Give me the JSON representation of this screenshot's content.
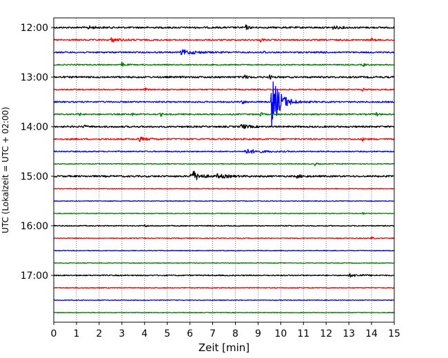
{
  "chart_data": {
    "type": "line",
    "title": "",
    "xlabel": "Zeit  [min]",
    "ylabel": "UTC (Lokalzeit = UTC + 02:00)",
    "xlim": [
      0,
      15
    ],
    "x_ticks": [
      0,
      1,
      2,
      3,
      4,
      5,
      6,
      7,
      8,
      9,
      10,
      11,
      12,
      13,
      14,
      15
    ],
    "x_tick_labels": [
      "0",
      "1",
      "2",
      "3",
      "4",
      "5",
      "6",
      "7",
      "8",
      "9",
      "10",
      "11",
      "12",
      "13",
      "14",
      "15"
    ],
    "grid": "vertical dotted at each minute",
    "trace_interval_min": 15,
    "trace_color_cycle": [
      "#000000",
      "#ff0000",
      "#0000ff",
      "#008000"
    ],
    "y_ticks": [
      {
        "label": "12:00",
        "trace_index": 0
      },
      {
        "label": "13:00",
        "trace_index": 4
      },
      {
        "label": "14:00",
        "trace_index": 8
      },
      {
        "label": "15:00",
        "trace_index": 12
      },
      {
        "label": "16:00",
        "trace_index": 16
      },
      {
        "label": "17:00",
        "trace_index": 20
      }
    ],
    "series": [
      {
        "start": "12:00",
        "color": "#000000",
        "noise": 1.2,
        "events": [
          {
            "x": 8.45,
            "amp": 3.5,
            "dur": 0.12
          },
          {
            "x": 1.5,
            "amp": 2,
            "dur": 0.3
          },
          {
            "x": 12.3,
            "amp": 2,
            "dur": 0.3
          }
        ]
      },
      {
        "start": "12:15",
        "color": "#ff0000",
        "noise": 1.0,
        "events": [
          {
            "x": 2.5,
            "amp": 3,
            "dur": 0.4
          },
          {
            "x": 9.1,
            "amp": 3,
            "dur": 0.1
          },
          {
            "x": 14.0,
            "amp": 2.5,
            "dur": 0.1
          }
        ]
      },
      {
        "start": "12:30",
        "color": "#0000ff",
        "noise": 1.0,
        "events": [
          {
            "x": 5.6,
            "amp": 3.5,
            "dur": 0.6
          },
          {
            "x": 9.2,
            "amp": 3,
            "dur": 0.1
          },
          {
            "x": 11.7,
            "amp": 2,
            "dur": 0.15
          }
        ]
      },
      {
        "start": "12:45",
        "color": "#008000",
        "noise": 0.8,
        "events": [
          {
            "x": 3.0,
            "amp": 4,
            "dur": 0.1
          },
          {
            "x": 13.6,
            "amp": 3,
            "dur": 0.1
          }
        ]
      },
      {
        "start": "13:00",
        "color": "#000000",
        "noise": 1.2,
        "events": [
          {
            "x": 8.35,
            "amp": 3.5,
            "dur": 0.15
          },
          {
            "x": 9.5,
            "amp": 3,
            "dur": 0.1
          }
        ]
      },
      {
        "start": "13:15",
        "color": "#ff0000",
        "noise": 0.8,
        "events": [
          {
            "x": 4.0,
            "amp": 3,
            "dur": 0.08
          },
          {
            "x": 13.6,
            "amp": 3,
            "dur": 0.08
          }
        ]
      },
      {
        "start": "13:30",
        "color": "#0000ff",
        "noise": 1.0,
        "events": [
          {
            "x": 9.6,
            "amp": 38,
            "dur": 0.35
          },
          {
            "x": 8.3,
            "amp": 3,
            "dur": 0.1
          }
        ]
      },
      {
        "start": "13:45",
        "color": "#008000",
        "noise": 1.0,
        "events": [
          {
            "x": 1.1,
            "amp": 2.5,
            "dur": 0.08
          },
          {
            "x": 3.4,
            "amp": 3,
            "dur": 0.08
          },
          {
            "x": 4.7,
            "amp": 3,
            "dur": 0.08
          },
          {
            "x": 9.1,
            "amp": 3,
            "dur": 0.08
          },
          {
            "x": 14.2,
            "amp": 3,
            "dur": 0.08
          }
        ]
      },
      {
        "start": "14:00",
        "color": "#000000",
        "noise": 1.2,
        "events": [
          {
            "x": 8.25,
            "amp": 4,
            "dur": 0.25
          },
          {
            "x": 1.3,
            "amp": 2.5,
            "dur": 0.1
          }
        ]
      },
      {
        "start": "14:15",
        "color": "#ff0000",
        "noise": 1.0,
        "events": [
          {
            "x": 3.7,
            "amp": 3,
            "dur": 0.4
          },
          {
            "x": 13.6,
            "amp": 2.5,
            "dur": 0.1
          }
        ]
      },
      {
        "start": "14:30",
        "color": "#0000ff",
        "noise": 0.8,
        "events": [
          {
            "x": 8.4,
            "amp": 3.5,
            "dur": 0.6
          }
        ]
      },
      {
        "start": "14:45",
        "color": "#008000",
        "noise": 0.6,
        "events": [
          {
            "x": 11.5,
            "amp": 2.5,
            "dur": 0.1
          }
        ]
      },
      {
        "start": "15:00",
        "color": "#000000",
        "noise": 1.2,
        "events": [
          {
            "x": 6.05,
            "amp": 10,
            "dur": 0.3
          },
          {
            "x": 7.2,
            "amp": 2.5,
            "dur": 0.5
          },
          {
            "x": 10.7,
            "amp": 2,
            "dur": 0.3
          }
        ]
      },
      {
        "start": "15:15",
        "color": "#ff0000",
        "noise": 0.5,
        "events": []
      },
      {
        "start": "15:30",
        "color": "#0000ff",
        "noise": 0.5,
        "events": []
      },
      {
        "start": "15:45",
        "color": "#008000",
        "noise": 0.5,
        "events": [
          {
            "x": 13.6,
            "amp": 2,
            "dur": 0.08
          }
        ]
      },
      {
        "start": "16:00",
        "color": "#000000",
        "noise": 0.7,
        "events": [
          {
            "x": 4.0,
            "amp": 2,
            "dur": 0.1
          }
        ]
      },
      {
        "start": "16:15",
        "color": "#ff0000",
        "noise": 0.6,
        "events": [
          {
            "x": 14.0,
            "amp": 2.5,
            "dur": 0.08
          }
        ]
      },
      {
        "start": "16:30",
        "color": "#0000ff",
        "noise": 0.5,
        "events": []
      },
      {
        "start": "16:45",
        "color": "#008000",
        "noise": 0.5,
        "events": []
      },
      {
        "start": "17:00",
        "color": "#000000",
        "noise": 0.8,
        "events": [
          {
            "x": 13.0,
            "amp": 2,
            "dur": 0.5
          }
        ]
      },
      {
        "start": "17:15",
        "color": "#ff0000",
        "noise": 0.6,
        "events": []
      },
      {
        "start": "17:30",
        "color": "#0000ff",
        "noise": 0.5,
        "events": []
      },
      {
        "start": "17:45",
        "color": "#008000",
        "noise": 0.5,
        "events": []
      }
    ]
  }
}
